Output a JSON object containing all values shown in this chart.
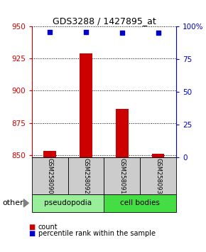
{
  "title": "GDS3288 / 1427895_at",
  "samples": [
    "GSM258090",
    "GSM258092",
    "GSM258091",
    "GSM258093"
  ],
  "bar_values": [
    853,
    929,
    886,
    851
  ],
  "bar_baseline": 848,
  "percentile_values": [
    96,
    96,
    95,
    95
  ],
  "ylim_left": [
    848,
    950
  ],
  "ylim_right": [
    0,
    100
  ],
  "yticks_left": [
    850,
    875,
    900,
    925,
    950
  ],
  "yticks_right": [
    0,
    25,
    50,
    75,
    100
  ],
  "bar_color": "#cc0000",
  "percentile_color": "#0000cc",
  "groups": [
    {
      "label": "pseudopodia",
      "samples": [
        0,
        1
      ],
      "color": "#99ee99"
    },
    {
      "label": "cell bodies",
      "samples": [
        2,
        3
      ],
      "color": "#44dd44"
    }
  ],
  "group_label": "other",
  "left_tick_color": "#cc0000",
  "right_tick_color": "#0000cc",
  "legend_count_color": "#cc0000",
  "legend_percentile_color": "#0000cc",
  "background_color": "#ffffff",
  "sample_box_color": "#cccccc",
  "bar_width": 0.35
}
